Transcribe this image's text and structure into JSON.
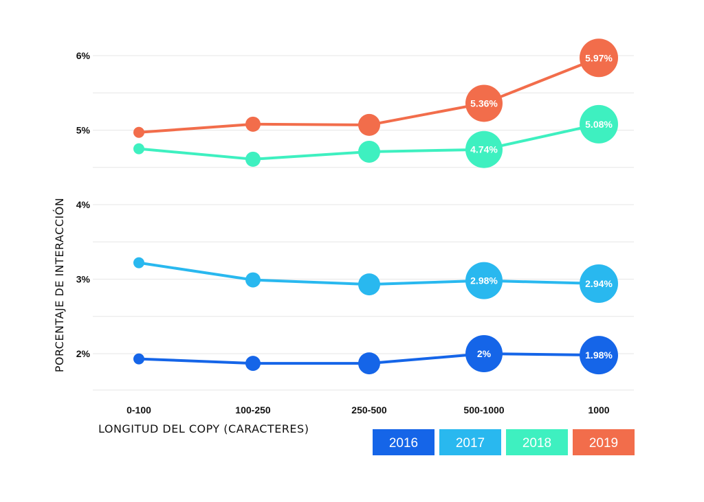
{
  "chart_data": {
    "type": "line",
    "title": "",
    "xlabel": "LONGITUD DEL COPY (CARACTERES)",
    "ylabel": "PORCENTAJE DE INTERACCIÓN",
    "categories": [
      "0-100",
      "100-250",
      "250-500",
      "500-1000",
      "1000"
    ],
    "ylim": [
      1.5,
      6.0
    ],
    "yticks": [
      2,
      3,
      4,
      5,
      6
    ],
    "ytick_labels": [
      "2%",
      "3%",
      "4%",
      "5%",
      "6%"
    ],
    "grid": true,
    "legend": "bottom-right",
    "series": [
      {
        "name": "2016",
        "color": "#1565e8",
        "values": [
          1.93,
          1.87,
          1.87,
          2.0,
          1.98
        ],
        "labels": [
          "",
          "",
          "",
          "2%",
          "1.98%"
        ]
      },
      {
        "name": "2017",
        "color": "#29b8ef",
        "values": [
          3.22,
          2.99,
          2.93,
          2.98,
          2.94
        ],
        "labels": [
          "",
          "",
          "",
          "2.98%",
          "2.94%"
        ]
      },
      {
        "name": "2018",
        "color": "#3ef0c0",
        "values": [
          4.75,
          4.61,
          4.71,
          4.74,
          5.08
        ],
        "labels": [
          "",
          "",
          "",
          "4.74%",
          "5.08%"
        ]
      },
      {
        "name": "2019",
        "color": "#f26d4b",
        "values": [
          4.97,
          5.08,
          5.07,
          5.36,
          5.97
        ],
        "labels": [
          "",
          "",
          "",
          "5.36%",
          "5.97%"
        ]
      }
    ]
  }
}
